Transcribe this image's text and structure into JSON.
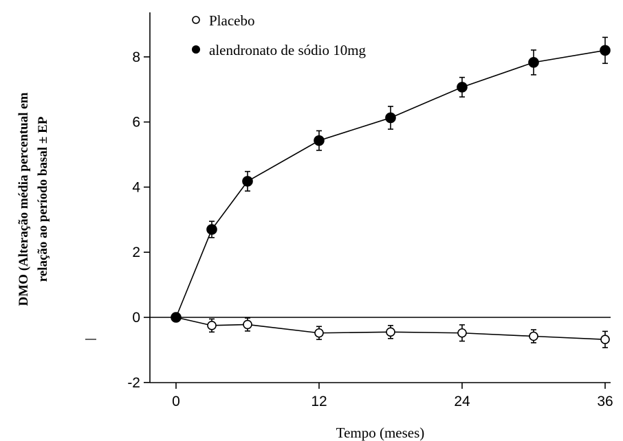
{
  "chart_data": {
    "type": "line",
    "title": "",
    "xlabel": "Tempo (meses)",
    "ylabel_line1": "DMO (Alteração média percentual em",
    "ylabel_line2": "relação ao período basal ± EP",
    "xlim": [
      0,
      36
    ],
    "ylim": [
      -2,
      9
    ],
    "xticks": [
      0,
      12,
      24,
      36
    ],
    "yticks": [
      -2,
      0,
      2,
      4,
      6,
      8
    ],
    "zero_reference_line": true,
    "grid": false,
    "legend_position": "top-left",
    "series": [
      {
        "name": "Placebo",
        "marker": "open-circle",
        "x": [
          0,
          3,
          6,
          12,
          18,
          24,
          30,
          36
        ],
        "y": [
          0,
          -0.25,
          -0.22,
          -0.48,
          -0.45,
          -0.48,
          -0.58,
          -0.68
        ],
        "err": [
          0,
          0.2,
          0.2,
          0.2,
          0.2,
          0.25,
          0.2,
          0.25
        ]
      },
      {
        "name": "alendronato de sódio 10mg",
        "marker": "filled-circle",
        "x": [
          0,
          3,
          6,
          12,
          18,
          24,
          30,
          36
        ],
        "y": [
          0,
          2.7,
          4.18,
          5.43,
          6.13,
          7.07,
          7.83,
          8.2
        ],
        "err": [
          0,
          0.25,
          0.3,
          0.3,
          0.35,
          0.3,
          0.38,
          0.4
        ]
      }
    ]
  }
}
